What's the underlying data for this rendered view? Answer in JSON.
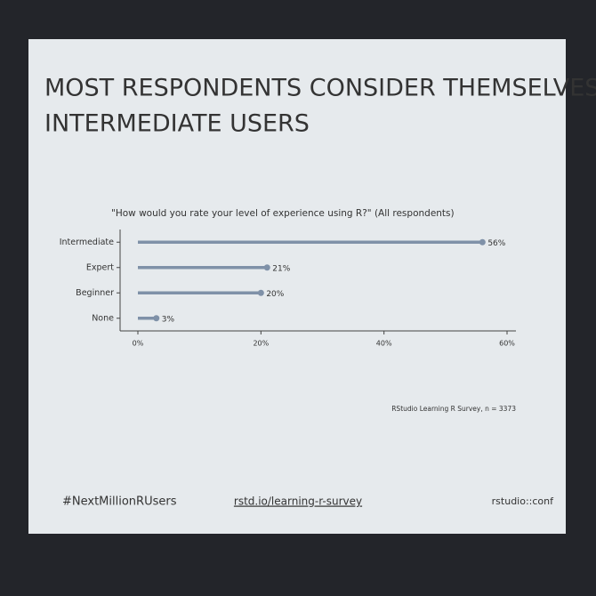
{
  "chart_data": {
    "type": "lollipop",
    "title": "MOST RESPONDENTS CONSIDER THEMSELVES INTERMEDIATE USERS",
    "subtitle": "\"How would you rate your level of experience using R?\" (All respondents)",
    "categories": [
      "Intermediate",
      "Expert",
      "Beginner",
      "None"
    ],
    "values": [
      56,
      21,
      20,
      3
    ],
    "value_labels": [
      "56%",
      "21%",
      "20%",
      "3%"
    ],
    "color": "#7f91a8",
    "xlim": [
      0,
      60
    ],
    "xticks": [
      {
        "value": 0,
        "label": "0%"
      },
      {
        "value": 20,
        "label": "20%"
      },
      {
        "value": 40,
        "label": "40%"
      },
      {
        "value": 60,
        "label": "60%"
      }
    ],
    "note": "RStudio Learning R Survey, n = 3373"
  },
  "footer": {
    "hashtag": "#NextMillionRUsers",
    "link": "rstd.io/learning-r-survey",
    "brand": "rstudio::conf"
  }
}
